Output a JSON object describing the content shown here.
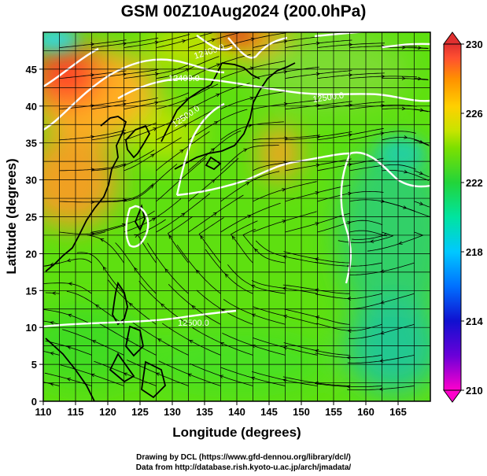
{
  "title": "GSM 00Z10Aug2024 (200.0hPa)",
  "x_axis": {
    "label": "Longitude (degrees)",
    "range": [
      110,
      170
    ],
    "ticks": [
      "110",
      "115",
      "120",
      "125",
      "130",
      "135",
      "140",
      "145",
      "150",
      "155",
      "160",
      "165"
    ]
  },
  "y_axis": {
    "label": "Latitude  (degrees)",
    "range": [
      0,
      50
    ],
    "ticks": [
      "0",
      "5",
      "10",
      "15",
      "20",
      "25",
      "30",
      "35",
      "40",
      "45"
    ]
  },
  "colorbar": {
    "ticks": [
      "210",
      "214",
      "218",
      "222",
      "226",
      "230"
    ],
    "range": [
      210,
      230
    ],
    "colors": [
      "#ff00cc",
      "#6a00d8",
      "#1010d0",
      "#0070ff",
      "#00c8ff",
      "#00e4a0",
      "#22d43a",
      "#7ce000",
      "#c8e400",
      "#ffd000",
      "#ff9000",
      "#ff5030",
      "#e03030"
    ]
  },
  "contour_labels": [
    "12400.0",
    "12400.0",
    "12500.0",
    "12500.0",
    "12500.0"
  ],
  "credits": {
    "line1": "Drawing by DCL (https://www.gfd-dennou.org/library/dcl/)",
    "line2": "Data from http://database.rish.kyoto-u.ac.jp/arch/jmadata/"
  }
}
